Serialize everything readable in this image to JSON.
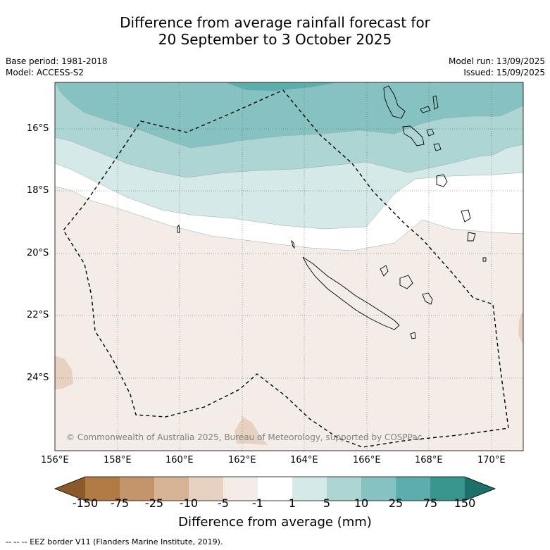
{
  "title_line1": "Difference from average rainfall forecast for",
  "title_line2": "20 September to 3 October 2025",
  "base_period": "Base period: 1981-2018",
  "model": "Model: ACCESS-S2",
  "model_run": "Model run: 13/09/2025",
  "issued": "Issued: 15/09/2025",
  "copyright": "© Commonwealth of Australia 2025, Bureau of Meteorology, supported by COSPPac",
  "lat_labels": [
    "16°S",
    "18°S",
    "20°S",
    "22°S",
    "24°S"
  ],
  "lon_labels": [
    "156°E",
    "158°E",
    "160°E",
    "162°E",
    "164°E",
    "166°E",
    "168°E",
    "170°E"
  ],
  "colorbar": {
    "labels": [
      "-150",
      "-75",
      "-25",
      "-10",
      "-5",
      "-1",
      "1",
      "5",
      "10",
      "25",
      "75",
      "150"
    ],
    "colors": [
      "#8a5a2b",
      "#b07a45",
      "#c4956a",
      "#d6b393",
      "#e7d2c1",
      "#f4ede7",
      "#ffffff",
      "#d5e9e8",
      "#acd5d4",
      "#86c2c1",
      "#5baeab",
      "#37978f",
      "#1d6f69"
    ],
    "title": "Difference from average (mm)"
  },
  "footer": "--  --  -- EEZ border V11 (Flanders Marine Institute, 2019)."
}
